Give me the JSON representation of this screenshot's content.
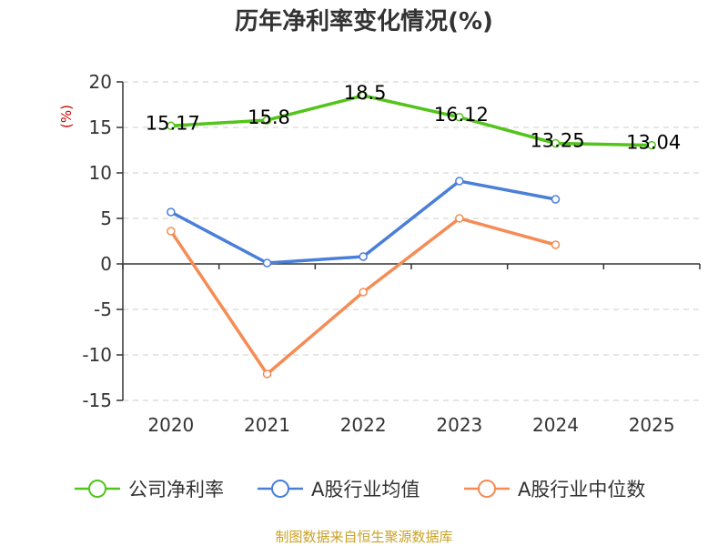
{
  "chart_data": {
    "type": "line",
    "title": "历年净利率变化情况(%)",
    "ylabel": "(%)",
    "categories": [
      "2020",
      "2021",
      "2022",
      "2023",
      "2024",
      "2025"
    ],
    "ylim": [
      -15,
      20
    ],
    "yticks": [
      20,
      15,
      10,
      5,
      0,
      -5,
      -10,
      -15
    ],
    "grid": true,
    "legend_position": "bottom",
    "series": [
      {
        "name": "公司净利率",
        "color": "#52c41a",
        "values": [
          15.17,
          15.8,
          18.5,
          16.12,
          13.25,
          13.04
        ],
        "labels": [
          "15.17",
          "15.8",
          "18.5",
          "16.12",
          "13.25",
          "13.04"
        ],
        "show_labels": true
      },
      {
        "name": "A股行业均值",
        "color": "#4a7fd9",
        "values": [
          5.7,
          0.1,
          0.8,
          9.1,
          7.1,
          null
        ],
        "show_labels": false
      },
      {
        "name": "A股行业中位数",
        "color": "#f58c55",
        "values": [
          3.6,
          -12.1,
          -3.1,
          5.0,
          2.1,
          null
        ],
        "show_labels": false
      }
    ]
  },
  "footer": {
    "source": "制图数据来自恒生聚源数据库"
  }
}
